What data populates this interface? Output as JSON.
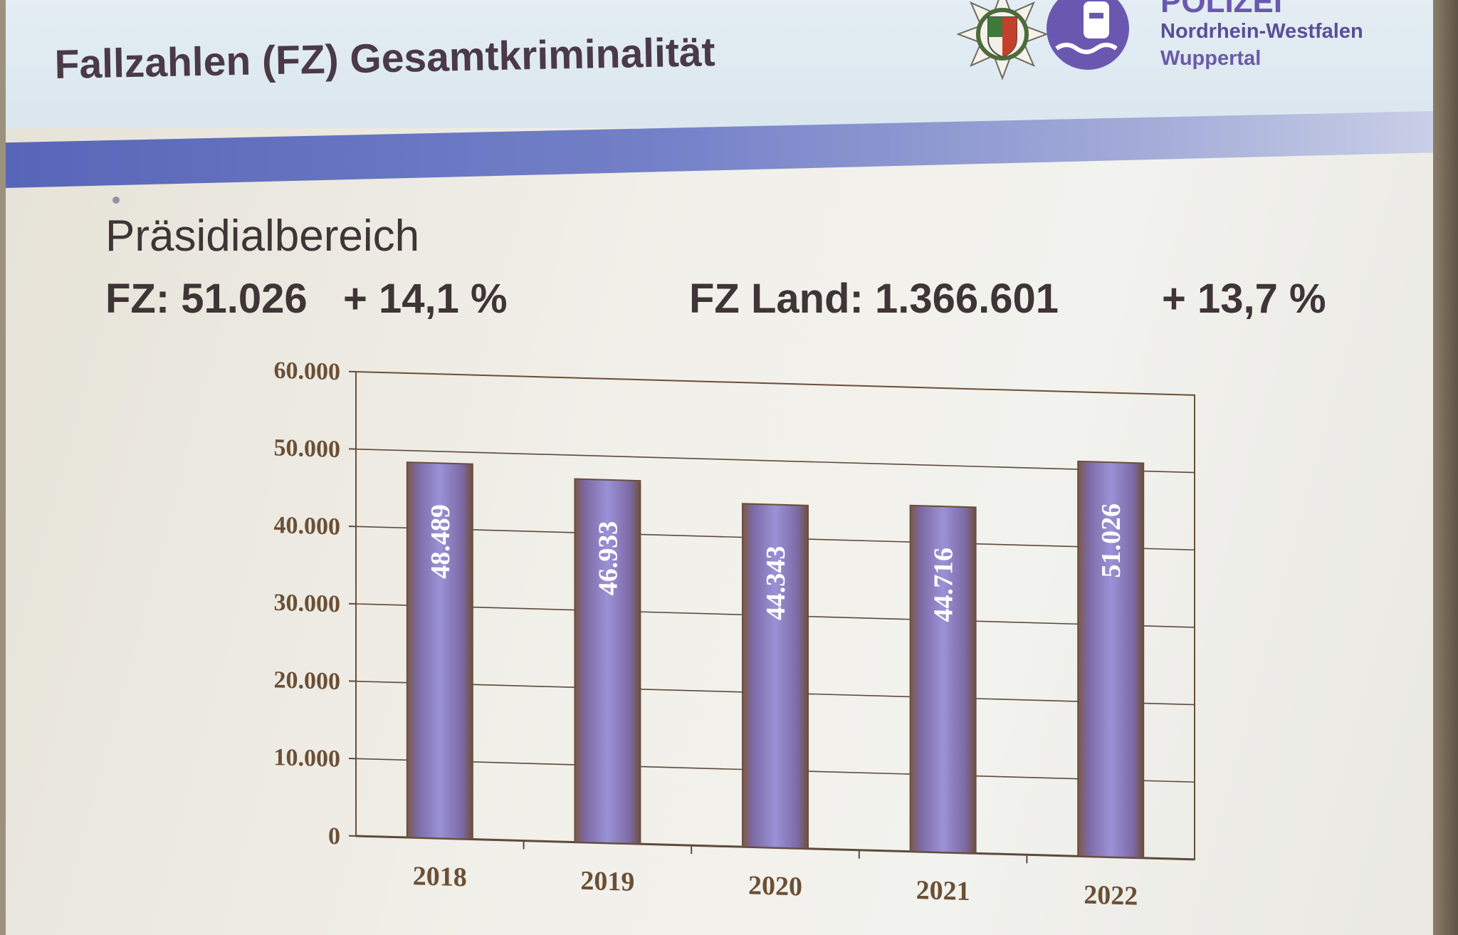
{
  "slide": {
    "title": "Fallzahlen (FZ) Gesamtkriminalität",
    "area_label": "Präsidialbereich",
    "fz_value": "FZ: 51.026",
    "fz_change": "+ 14,1 %",
    "fz_land_value": "FZ Land: 1.366.601",
    "fz_land_change": "+ 13,7 %"
  },
  "organization": {
    "name": "POLIZEI",
    "subtitle_1": "Nordrhein-Westfalen",
    "subtitle_2": "Wuppertal",
    "logo_icon": "police-star-badge-icon"
  },
  "colors": {
    "title_text": "#4a3a48",
    "band_blue": "#5866b8",
    "bar_fill": "#8f86c8",
    "bar_edge": "#7a5a48",
    "axis_text": "#6b4f35",
    "org_text": "#6a58b0"
  },
  "chart_data": {
    "type": "bar",
    "categories": [
      "2018",
      "2019",
      "2020",
      "2021",
      "2022"
    ],
    "values": [
      48489,
      46933,
      44343,
      44716,
      51026
    ],
    "value_labels": [
      "48.489",
      "46.933",
      "44.343",
      "44.716",
      "51.026"
    ],
    "yticks": [
      "0",
      "10.000",
      "20.000",
      "30.000",
      "40.000",
      "50.000",
      "60.000"
    ],
    "ylim": [
      0,
      60000
    ],
    "grid": true,
    "legend": "none",
    "title": "",
    "xlabel": "",
    "ylabel": ""
  }
}
